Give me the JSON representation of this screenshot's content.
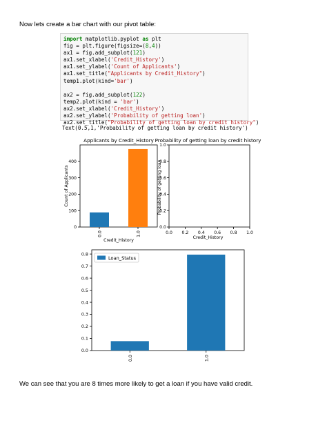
{
  "intro_text": "Now lets create a bar chart with our pivot table:",
  "outro_text": "We can see that you are 8 times more likely to get a loan if you have valid credit.",
  "code_lines": [
    [
      {
        "t": "import",
        "c": "kw"
      },
      {
        "t": " matplotlib.pyplot "
      },
      {
        "t": "as",
        "c": "kw"
      },
      {
        "t": " plt"
      }
    ],
    [
      {
        "t": "fig = plt.figure(figsize=("
      },
      {
        "t": "8",
        "c": "num"
      },
      {
        "t": ","
      },
      {
        "t": "4",
        "c": "num"
      },
      {
        "t": "))"
      }
    ],
    [
      {
        "t": "ax1 = fig.add_subplot("
      },
      {
        "t": "121",
        "c": "num"
      },
      {
        "t": ")"
      }
    ],
    [
      {
        "t": "ax1.set_xlabel("
      },
      {
        "t": "'Credit_History'",
        "c": "str"
      },
      {
        "t": ")"
      }
    ],
    [
      {
        "t": "ax1.set_ylabel("
      },
      {
        "t": "'Count of Applicants'",
        "c": "str"
      },
      {
        "t": ")"
      }
    ],
    [
      {
        "t": "ax1.set_title("
      },
      {
        "t": "\"Applicants by Credit_History\"",
        "c": "str"
      },
      {
        "t": ")"
      }
    ],
    [
      {
        "t": "temp1.plot(kind="
      },
      {
        "t": "'bar'",
        "c": "str"
      },
      {
        "t": ")"
      }
    ],
    [
      {
        "t": ""
      }
    ],
    [
      {
        "t": "ax2 = fig.add_subplot("
      },
      {
        "t": "122",
        "c": "num"
      },
      {
        "t": ")"
      }
    ],
    [
      {
        "t": "temp2.plot(kind = "
      },
      {
        "t": "'bar'",
        "c": "str"
      },
      {
        "t": ")"
      }
    ],
    [
      {
        "t": "ax2.set_xlabel("
      },
      {
        "t": "'Credit_History'",
        "c": "str"
      },
      {
        "t": ")"
      }
    ],
    [
      {
        "t": "ax2.set_ylabel("
      },
      {
        "t": "'Probability of getting loan'",
        "c": "str"
      },
      {
        "t": ")"
      }
    ],
    [
      {
        "t": "ax2.set_title("
      },
      {
        "t": "\"Probability of getting loan by credit history\"",
        "c": "str"
      },
      {
        "t": ")"
      }
    ]
  ],
  "output_text": "Text(0.5,1,'Probability of getting loan by credit history')",
  "colors": {
    "blue": "#1f77b4",
    "orange": "#ff7f0e",
    "code_kw": "#008000",
    "code_str": "#ba2121"
  },
  "chart_data": [
    {
      "type": "bar",
      "title": "Applicants by Credit_History",
      "xlabel": "Credit_History",
      "ylabel": "Count of Applicants",
      "categories": [
        "0.0",
        "1.0"
      ],
      "values": [
        89,
        475
      ],
      "bar_colors": [
        "#1f77b4",
        "#ff7f0e"
      ],
      "ylim": [
        0,
        500
      ],
      "yticks": [
        0,
        100,
        200,
        300,
        400
      ]
    },
    {
      "type": "bar",
      "title": "Probability of getting loan by credit history",
      "xlabel": "Credit_History",
      "ylabel": "Probability of getting loan",
      "categories": [],
      "values": [],
      "xlim": [
        0,
        1
      ],
      "ylim": [
        0,
        1
      ],
      "xticks": [
        "0.0",
        "0.2",
        "0.4",
        "0.6",
        "0.8",
        "1.0"
      ],
      "yticks": [
        "0.0",
        "0.2",
        "0.4",
        "0.6",
        "0.8",
        "1.0"
      ]
    },
    {
      "type": "bar",
      "title": "",
      "xlabel": "",
      "ylabel": "",
      "categories": [
        "0.0",
        "1.0"
      ],
      "series": [
        {
          "name": "Loan_Status",
          "values": [
            0.078,
            0.795
          ]
        }
      ],
      "bar_colors": [
        "#1f77b4",
        "#1f77b4"
      ],
      "ylim": [
        0,
        0.835
      ],
      "yticks": [
        "0.0",
        "0.1",
        "0.2",
        "0.3",
        "0.4",
        "0.5",
        "0.6",
        "0.7",
        "0.8"
      ],
      "legend": "top-left"
    }
  ]
}
